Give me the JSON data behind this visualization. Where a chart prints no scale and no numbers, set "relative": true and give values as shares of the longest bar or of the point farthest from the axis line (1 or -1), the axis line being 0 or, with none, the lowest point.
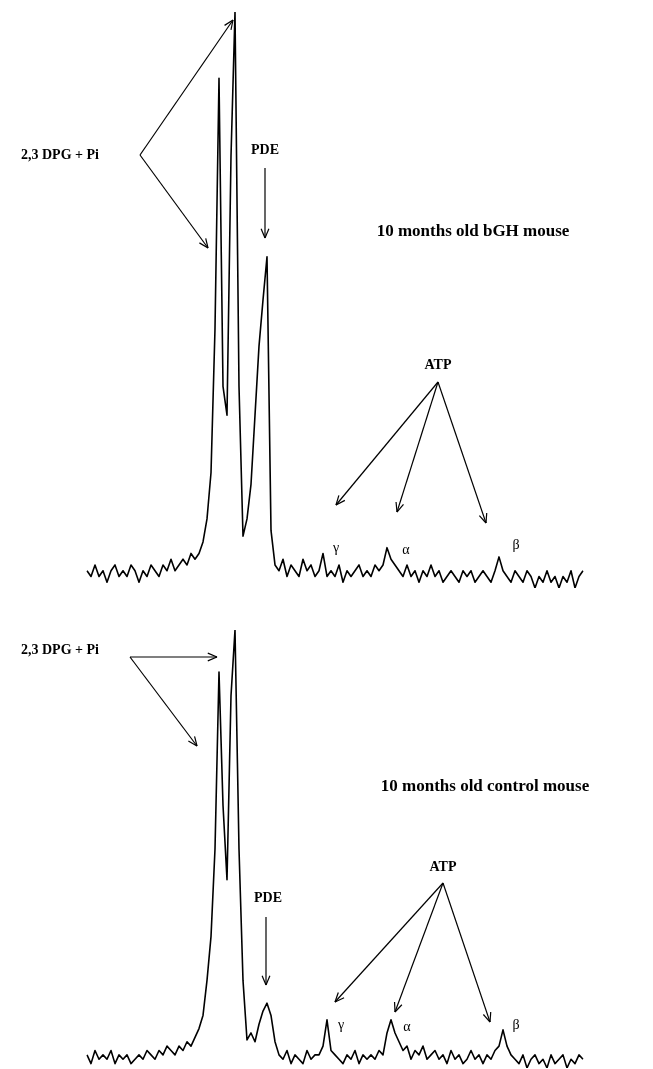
{
  "chart_data": [
    {
      "type": "line",
      "title": "10 months old bGH mouse",
      "relative": true,
      "tick_labels": false,
      "marker": "none",
      "annotations": [
        "2,3 DPG + Pi",
        "PDE",
        "ATP",
        "γ",
        "α",
        "β"
      ],
      "categories": [
        null,
        null,
        null,
        null,
        null,
        null,
        null,
        null,
        null,
        null,
        null,
        null,
        null,
        null,
        null,
        null,
        null,
        null,
        null,
        null,
        null,
        null,
        null,
        null,
        null,
        null,
        null,
        null,
        null,
        null,
        null,
        null,
        null,
        null,
        null,
        null,
        null,
        null,
        null,
        null,
        null,
        null,
        null,
        null,
        null,
        null,
        null,
        null,
        null,
        null,
        null,
        null,
        null,
        null,
        null,
        null,
        null,
        null,
        null,
        null,
        null,
        null,
        null,
        null,
        null,
        null,
        null,
        null,
        null,
        null,
        null,
        null,
        null,
        null,
        null,
        null,
        null,
        null,
        null,
        null,
        null,
        null,
        null,
        null,
        null,
        null,
        null,
        null,
        null,
        null,
        null,
        null,
        null,
        null,
        null,
        null,
        null,
        null,
        null,
        null,
        null,
        null,
        null,
        null,
        null,
        null,
        null,
        null,
        null,
        null,
        null,
        null,
        null,
        null,
        null,
        null,
        null,
        null,
        null,
        null,
        null,
        null,
        null,
        null,
        null
      ],
      "series": [
        {
          "color": "#000000",
          "values": [
            0.03,
            0.02,
            0.04,
            0.02,
            0.03,
            0.01,
            0.03,
            0.04,
            0.02,
            0.03,
            0.02,
            0.04,
            0.03,
            0.01,
            0.03,
            0.02,
            0.04,
            0.03,
            0.02,
            0.04,
            0.03,
            0.05,
            0.03,
            0.04,
            0.05,
            0.04,
            0.06,
            0.05,
            0.06,
            0.08,
            0.12,
            0.2,
            0.45,
            0.885,
            0.35,
            0.3,
            0.75,
            1,
            0.35,
            0.09,
            0.12,
            0.18,
            0.3,
            0.42,
            0.5,
            0.575,
            0.1,
            0.04,
            0.03,
            0.05,
            0.02,
            0.04,
            0.03,
            0.02,
            0.05,
            0.03,
            0.04,
            0.02,
            0.03,
            0.06,
            0.02,
            0.03,
            0.02,
            0.04,
            0.01,
            0.03,
            0.02,
            0.03,
            0.04,
            0.02,
            0.03,
            0.02,
            0.04,
            0.03,
            0.04,
            0.07,
            0.05,
            0.04,
            0.03,
            0.02,
            0.04,
            0.02,
            0.03,
            0.01,
            0.03,
            0.02,
            0.04,
            0.02,
            0.03,
            0.01,
            0.02,
            0.03,
            0.02,
            0.01,
            0.03,
            0.02,
            0.03,
            0.01,
            0.02,
            0.03,
            0.02,
            0.01,
            0.03,
            0.054,
            0.03,
            0.02,
            0.01,
            0.03,
            0.02,
            0.01,
            0.03,
            0.02,
            0.0,
            0.02,
            0.01,
            0.03,
            0.01,
            0.02,
            0.0,
            0.02,
            0.01,
            0.03,
            0.0,
            0.02,
            0.03
          ]
        }
      ]
    },
    {
      "type": "line",
      "title": "10 months old control mouse",
      "relative": true,
      "tick_labels": false,
      "marker": "none",
      "annotations": [
        "2,3 DPG + Pi",
        "PDE",
        "ATP",
        "γ",
        "α",
        "β"
      ],
      "categories": [
        null,
        null,
        null,
        null,
        null,
        null,
        null,
        null,
        null,
        null,
        null,
        null,
        null,
        null,
        null,
        null,
        null,
        null,
        null,
        null,
        null,
        null,
        null,
        null,
        null,
        null,
        null,
        null,
        null,
        null,
        null,
        null,
        null,
        null,
        null,
        null,
        null,
        null,
        null,
        null,
        null,
        null,
        null,
        null,
        null,
        null,
        null,
        null,
        null,
        null,
        null,
        null,
        null,
        null,
        null,
        null,
        null,
        null,
        null,
        null,
        null,
        null,
        null,
        null,
        null,
        null,
        null,
        null,
        null,
        null,
        null,
        null,
        null,
        null,
        null,
        null,
        null,
        null,
        null,
        null,
        null,
        null,
        null,
        null,
        null,
        null,
        null,
        null,
        null,
        null,
        null,
        null,
        null,
        null,
        null,
        null,
        null,
        null,
        null,
        null,
        null,
        null,
        null,
        null,
        null,
        null,
        null,
        null,
        null,
        null,
        null,
        null,
        null,
        null,
        null,
        null,
        null,
        null,
        null,
        null,
        null,
        null,
        null,
        null,
        null
      ],
      "series": [
        {
          "color": "#000000",
          "values": [
            0.03,
            0.01,
            0.04,
            0.02,
            0.03,
            0.02,
            0.04,
            0.01,
            0.03,
            0.02,
            0.03,
            0.01,
            0.02,
            0.03,
            0.02,
            0.04,
            0.03,
            0.02,
            0.04,
            0.03,
            0.05,
            0.04,
            0.03,
            0.05,
            0.04,
            0.06,
            0.05,
            0.07,
            0.09,
            0.12,
            0.2,
            0.3,
            0.5,
            0.904,
            0.6,
            0.43,
            0.85,
            1,
            0.5,
            0.2,
            0.064,
            0.08,
            0.06,
            0.1,
            0.13,
            0.148,
            0.12,
            0.06,
            0.03,
            0.02,
            0.04,
            0.01,
            0.03,
            0.02,
            0.01,
            0.04,
            0.02,
            0.03,
            0.03,
            0.05,
            0.11,
            0.04,
            0.03,
            0.02,
            0.01,
            0.03,
            0.02,
            0.04,
            0.01,
            0.03,
            0.02,
            0.03,
            0.02,
            0.04,
            0.03,
            0.08,
            0.11,
            0.08,
            0.06,
            0.04,
            0.05,
            0.02,
            0.04,
            0.03,
            0.05,
            0.02,
            0.03,
            0.04,
            0.02,
            0.03,
            0.01,
            0.04,
            0.02,
            0.03,
            0.01,
            0.02,
            0.04,
            0.02,
            0.03,
            0.01,
            0.03,
            0.02,
            0.04,
            0.05,
            0.087,
            0.05,
            0.03,
            0.02,
            0.01,
            0.03,
            0.0,
            0.02,
            0.03,
            0.01,
            0.02,
            0.0,
            0.03,
            0.01,
            0.02,
            0.03,
            0.0,
            0.02,
            0.01,
            0.03,
            0.02
          ]
        }
      ]
    }
  ]
}
